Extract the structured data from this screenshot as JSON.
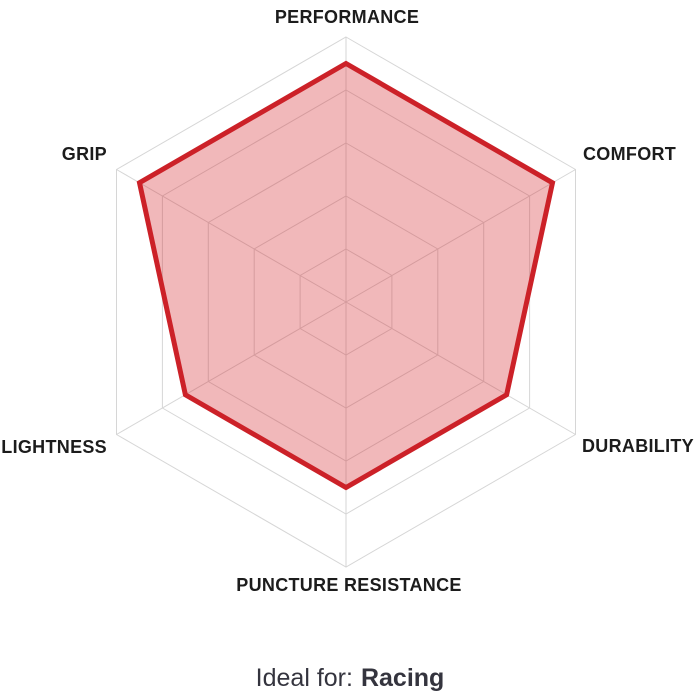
{
  "chart_data": {
    "type": "radar",
    "title": "",
    "categories": [
      "PERFORMANCE",
      "COMFORT",
      "DURABILITY",
      "PUNCTURE RESISTANCE",
      "LIGHTNESS",
      "GRIP"
    ],
    "values": [
      4.5,
      4.5,
      3.5,
      3.5,
      3.5,
      4.5
    ],
    "scale_max": 5,
    "grid_rings": 5,
    "grid": "on",
    "legend_position": "none",
    "colors": {
      "series_stroke": "#cc2128",
      "series_fill": "rgba(211, 38, 47, 0.33)",
      "grid": "#d6d6d6",
      "label_text": "#1c1c1c",
      "caption_text": "#34343e"
    }
  },
  "caption": {
    "prefix": "Ideal for:",
    "value": "Racing"
  }
}
